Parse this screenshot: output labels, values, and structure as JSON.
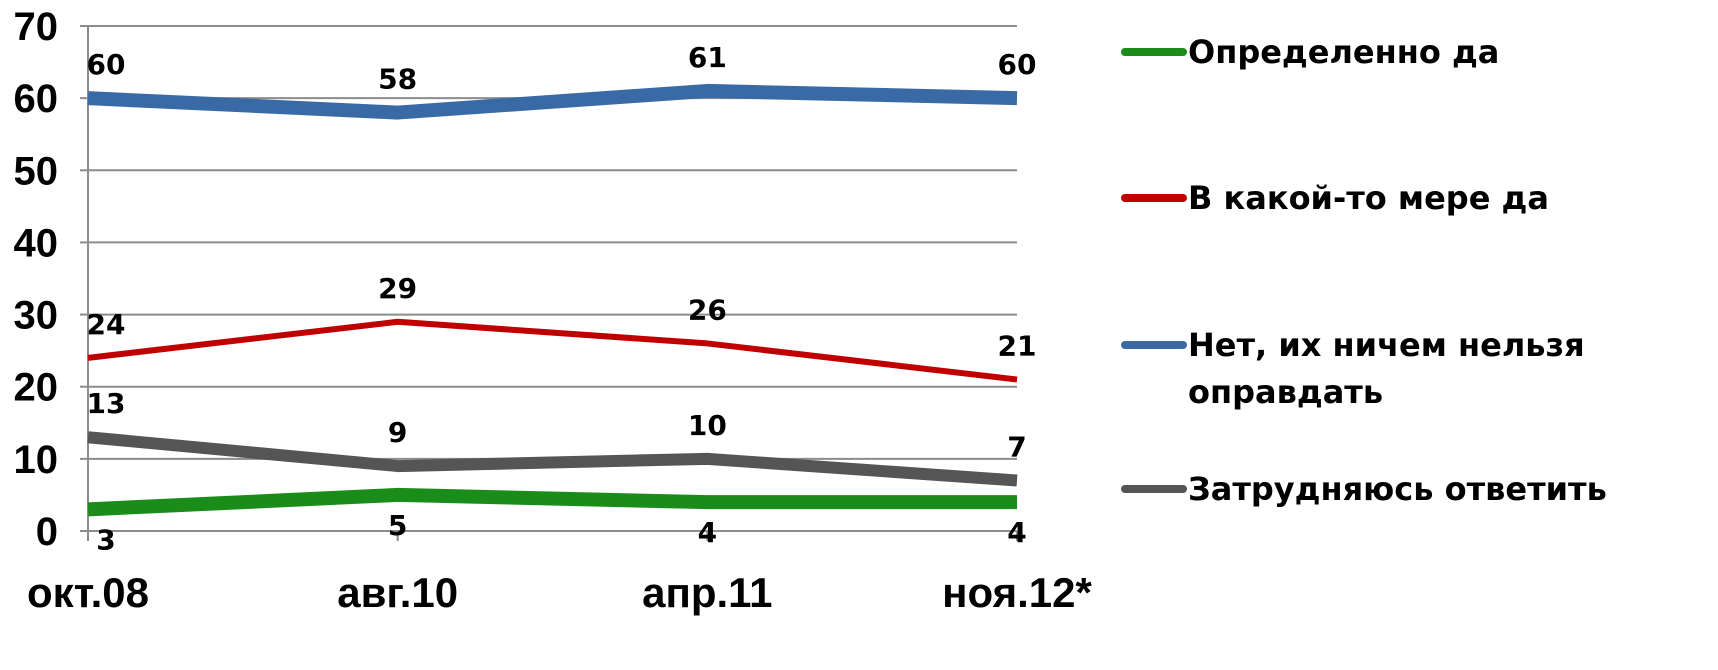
{
  "chart_data": {
    "type": "line",
    "categories": [
      "окт.08",
      "авг.10",
      "апр.11",
      "ноя.12*"
    ],
    "ylim": [
      0,
      70
    ],
    "yticks": [
      0,
      10,
      20,
      30,
      40,
      50,
      60,
      70
    ],
    "grid": true,
    "legend_position": "right",
    "series": [
      {
        "name": "Определенно да",
        "color": "#1a8c1a",
        "values": [
          3,
          5,
          4,
          4
        ]
      },
      {
        "name": "В какой-то мере да",
        "color": "#c00000",
        "values": [
          24,
          29,
          26,
          21
        ]
      },
      {
        "name": "Нет, их ничем нельзя оправдать",
        "color": "#3a6aa5",
        "values": [
          60,
          58,
          61,
          60
        ]
      },
      {
        "name": "Затрудняюсь ответить",
        "color": "#555555",
        "values": [
          13,
          9,
          10,
          7
        ]
      }
    ],
    "legend_lines": [
      [
        "Определенно да"
      ],
      [
        "В какой-то мере да"
      ],
      [
        "Нет, их ничем нельзя",
        "оправдать"
      ],
      [
        "Затрудняюсь ответить"
      ]
    ]
  }
}
